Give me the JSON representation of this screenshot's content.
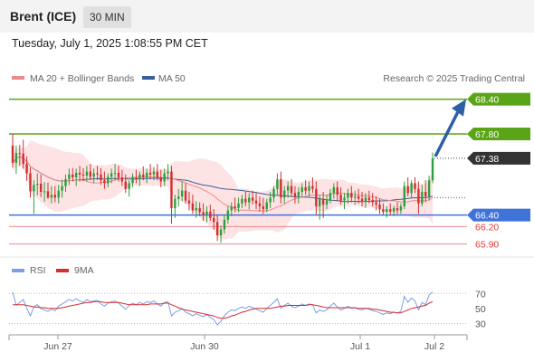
{
  "header": {
    "title": "Brent (ICE)",
    "interval": "30 MIN",
    "timestamp": "Tuesday, July 1, 2025 1:08:55 PM CET"
  },
  "legend": {
    "ma20": "MA 20 + Bollinger Bands",
    "ma50": "MA 50",
    "source": "Research © 2025 Trading Central"
  },
  "colors": {
    "up": "#2e9e3e",
    "down": "#d32f2f",
    "target": "#5aa517",
    "support": "#3f73d8",
    "minor": "#ef8a8a",
    "band": "#fde3e3",
    "ma20": "#ef8a8a",
    "ma50": "#3a5f9b",
    "rsi": "#7c9ee6",
    "rsi_ma": "#d32f2f",
    "arrow": "#2f5ea8"
  },
  "rsi_legend": {
    "rsi": "RSI",
    "ma": "9MA"
  },
  "chart_data": [
    {
      "type": "candlestick",
      "y_range": [
        65.8,
        68.55
      ],
      "x_labels": [
        "Jun 27",
        "Jun 30",
        "Jul 1",
        "Jul 2"
      ],
      "last_price": 67.38,
      "levels": [
        {
          "value": 68.4,
          "label": "68.40",
          "kind": "target"
        },
        {
          "value": 67.8,
          "label": "67.80",
          "kind": "target"
        },
        {
          "value": 66.4,
          "label": "66.40",
          "kind": "support"
        },
        {
          "value": 66.2,
          "label": "66.20",
          "kind": "minor"
        },
        {
          "value": 65.9,
          "label": "65.90",
          "kind": "minor"
        }
      ],
      "last_label": "67.38",
      "ohlc": [
        [
          67.6,
          67.8,
          67.22,
          67.3
        ],
        [
          67.3,
          67.6,
          67.11,
          67.47
        ],
        [
          67.47,
          67.61,
          67.25,
          67.46
        ],
        [
          67.46,
          67.7,
          67.2,
          67.28
        ],
        [
          67.28,
          67.41,
          66.99,
          67.12
        ],
        [
          67.12,
          67.22,
          66.7,
          66.81
        ],
        [
          66.81,
          67.0,
          66.42,
          66.92
        ],
        [
          66.92,
          67.12,
          66.74,
          66.94
        ],
        [
          66.94,
          67.1,
          66.71,
          66.8
        ],
        [
          66.8,
          66.97,
          66.63,
          66.81
        ],
        [
          66.81,
          66.96,
          66.68,
          66.7
        ],
        [
          66.7,
          66.9,
          66.6,
          66.75
        ],
        [
          66.75,
          66.9,
          66.62,
          66.7
        ],
        [
          66.7,
          66.92,
          66.6,
          66.82
        ],
        [
          66.82,
          67.01,
          66.7,
          66.9
        ],
        [
          66.9,
          67.1,
          66.8,
          67.02
        ],
        [
          67.02,
          67.2,
          66.92,
          67.1
        ],
        [
          67.1,
          67.21,
          66.98,
          67.05
        ],
        [
          67.05,
          67.2,
          66.9,
          67.13
        ],
        [
          67.13,
          67.25,
          66.98,
          67.1
        ],
        [
          67.1,
          67.21,
          66.99,
          67.08
        ],
        [
          67.08,
          67.25,
          66.98,
          67.15
        ],
        [
          67.15,
          67.28,
          67.0,
          67.06
        ],
        [
          67.06,
          67.2,
          66.95,
          67.12
        ],
        [
          67.12,
          67.25,
          67.0,
          67.1
        ],
        [
          67.1,
          67.21,
          66.92,
          67.0
        ],
        [
          67.0,
          67.15,
          66.85,
          66.95
        ],
        [
          66.95,
          67.12,
          66.88,
          67.06
        ],
        [
          67.06,
          67.2,
          66.95,
          67.12
        ],
        [
          67.12,
          67.28,
          67.0,
          67.13
        ],
        [
          67.13,
          67.25,
          66.98,
          67.05
        ],
        [
          67.05,
          67.18,
          66.9,
          66.98
        ],
        [
          66.98,
          67.1,
          66.78,
          66.85
        ],
        [
          66.85,
          67.0,
          66.72,
          66.95
        ],
        [
          66.95,
          67.12,
          66.88,
          67.05
        ],
        [
          67.05,
          67.18,
          66.95,
          67.02
        ],
        [
          67.02,
          67.15,
          66.9,
          67.1
        ],
        [
          67.1,
          67.24,
          67.0,
          67.05
        ],
        [
          67.05,
          67.2,
          66.95,
          67.13
        ],
        [
          67.13,
          67.28,
          67.02,
          67.1
        ],
        [
          67.1,
          67.23,
          67.0,
          67.15
        ],
        [
          67.15,
          67.28,
          67.0,
          67.05
        ],
        [
          67.05,
          67.18,
          66.88,
          66.98
        ],
        [
          66.98,
          67.2,
          66.9,
          67.12
        ],
        [
          67.12,
          67.28,
          67.0,
          67.15
        ],
        [
          67.15,
          67.25,
          66.25,
          66.52
        ],
        [
          66.52,
          66.75,
          66.35,
          66.68
        ],
        [
          66.68,
          66.85,
          66.55,
          66.72
        ],
        [
          66.72,
          66.98,
          66.64,
          66.82
        ],
        [
          66.82,
          66.95,
          66.6,
          66.65
        ],
        [
          66.65,
          66.8,
          66.48,
          66.6
        ],
        [
          66.6,
          66.75,
          66.42,
          66.48
        ],
        [
          66.48,
          66.64,
          66.35,
          66.52
        ],
        [
          66.52,
          66.62,
          66.38,
          66.45
        ],
        [
          66.45,
          66.6,
          66.3,
          66.4
        ],
        [
          66.4,
          66.55,
          66.28,
          66.46
        ],
        [
          66.46,
          66.58,
          66.3,
          66.35
        ],
        [
          66.35,
          66.5,
          66.15,
          66.28
        ],
        [
          66.28,
          66.4,
          65.95,
          66.05
        ],
        [
          66.05,
          66.22,
          65.92,
          66.15
        ],
        [
          66.15,
          66.4,
          66.08,
          66.32
        ],
        [
          66.32,
          66.55,
          66.25,
          66.48
        ],
        [
          66.48,
          66.62,
          66.38,
          66.55
        ],
        [
          66.55,
          66.7,
          66.45,
          66.52
        ],
        [
          66.52,
          66.7,
          66.45,
          66.6
        ],
        [
          66.6,
          66.75,
          66.52,
          66.68
        ],
        [
          66.68,
          66.8,
          66.55,
          66.62
        ],
        [
          66.62,
          66.78,
          66.5,
          66.7
        ],
        [
          66.7,
          66.82,
          66.58,
          66.65
        ],
        [
          66.65,
          66.78,
          66.5,
          66.6
        ],
        [
          66.6,
          66.72,
          66.46,
          66.55
        ],
        [
          66.55,
          66.7,
          66.42,
          66.5
        ],
        [
          66.5,
          66.68,
          66.45,
          66.62
        ],
        [
          66.62,
          66.8,
          66.52,
          66.7
        ],
        [
          66.7,
          66.9,
          66.62,
          66.85
        ],
        [
          66.85,
          67.12,
          66.75,
          67.02
        ],
        [
          67.02,
          67.15,
          66.6,
          66.7
        ],
        [
          66.7,
          66.9,
          66.6,
          66.82
        ],
        [
          66.82,
          66.98,
          66.7,
          66.9
        ],
        [
          66.9,
          67.02,
          66.72,
          66.78
        ],
        [
          66.78,
          66.9,
          66.6,
          66.72
        ],
        [
          66.72,
          66.88,
          66.6,
          66.8
        ],
        [
          66.8,
          66.95,
          66.7,
          66.88
        ],
        [
          66.88,
          67.0,
          66.75,
          66.82
        ],
        [
          66.82,
          66.98,
          66.72,
          66.9
        ],
        [
          66.9,
          67.05,
          66.78,
          66.85
        ],
        [
          66.85,
          66.98,
          66.4,
          66.55
        ],
        [
          66.55,
          66.75,
          66.32,
          66.68
        ],
        [
          66.68,
          66.8,
          66.35,
          66.58
        ],
        [
          66.58,
          66.75,
          66.5,
          66.65
        ],
        [
          66.65,
          66.85,
          66.6,
          66.78
        ],
        [
          66.78,
          66.95,
          66.68,
          66.88
        ],
        [
          66.88,
          66.98,
          66.65,
          66.75
        ],
        [
          66.75,
          66.88,
          66.58,
          66.65
        ],
        [
          66.65,
          66.78,
          66.5,
          66.7
        ],
        [
          66.7,
          66.85,
          66.6,
          66.78
        ],
        [
          66.78,
          66.9,
          66.62,
          66.7
        ],
        [
          66.7,
          66.82,
          66.58,
          66.72
        ],
        [
          66.72,
          66.85,
          66.6,
          66.68
        ],
        [
          66.68,
          66.8,
          66.55,
          66.64
        ],
        [
          66.64,
          66.78,
          66.52,
          66.7
        ],
        [
          66.7,
          66.82,
          66.6,
          66.66
        ],
        [
          66.66,
          66.78,
          66.55,
          66.62
        ],
        [
          66.62,
          66.72,
          66.48,
          66.58
        ],
        [
          66.58,
          66.68,
          66.42,
          66.5
        ],
        [
          66.5,
          66.6,
          66.4,
          66.45
        ],
        [
          66.45,
          66.55,
          66.36,
          66.5
        ],
        [
          66.5,
          66.6,
          66.4,
          66.46
        ],
        [
          66.46,
          66.56,
          66.38,
          66.52
        ],
        [
          66.52,
          66.62,
          66.42,
          66.48
        ],
        [
          66.48,
          66.6,
          66.42,
          66.55
        ],
        [
          66.55,
          66.98,
          66.5,
          66.9
        ],
        [
          66.9,
          67.05,
          66.72,
          66.78
        ],
        [
          66.78,
          67.0,
          66.7,
          66.95
        ],
        [
          66.95,
          67.05,
          66.78,
          66.85
        ],
        [
          66.85,
          66.98,
          66.42,
          66.6
        ],
        [
          66.6,
          66.92,
          66.55,
          66.8
        ],
        [
          66.8,
          67.0,
          66.62,
          66.72
        ],
        [
          66.72,
          67.08,
          66.65,
          67.0
        ],
        [
          67.0,
          67.48,
          66.95,
          67.38
        ]
      ]
    },
    {
      "type": "line",
      "name": "RSI",
      "y_ticks": [
        70,
        50,
        30
      ],
      "y_range": [
        22,
        80
      ],
      "series": [
        {
          "name": "RSI",
          "values": [
            72,
            54,
            58,
            62,
            50,
            40,
            52,
            55,
            50,
            48,
            46,
            49,
            47,
            53,
            56,
            59,
            62,
            60,
            63,
            60,
            58,
            62,
            59,
            60,
            61,
            56,
            53,
            57,
            59,
            60,
            57,
            53,
            49,
            54,
            57,
            55,
            58,
            56,
            59,
            58,
            60,
            56,
            53,
            58,
            59,
            40,
            45,
            47,
            50,
            45,
            43,
            40,
            43,
            41,
            39,
            42,
            38,
            35,
            28,
            33,
            40,
            45,
            48,
            47,
            50,
            52,
            50,
            53,
            51,
            49,
            47,
            45,
            50,
            54,
            58,
            63,
            50,
            54,
            57,
            53,
            51,
            53,
            56,
            54,
            56,
            55,
            44,
            48,
            46,
            48,
            53,
            57,
            52,
            48,
            50,
            53,
            50,
            51,
            49,
            48,
            50,
            49,
            47,
            46,
            44,
            42,
            44,
            43,
            45,
            44,
            46,
            66,
            58,
            64,
            60,
            48,
            58,
            55,
            68,
            72
          ]
        },
        {
          "name": "9MA",
          "values": [
            55,
            55,
            55,
            55,
            54,
            53,
            52,
            52,
            51,
            51,
            50,
            50,
            50,
            50,
            51,
            52,
            53,
            54,
            55,
            56,
            57,
            58,
            58,
            59,
            59,
            59,
            58,
            58,
            58,
            58,
            58,
            57,
            56,
            55,
            55,
            55,
            55,
            55,
            55,
            56,
            56,
            56,
            56,
            57,
            57,
            55,
            53,
            51,
            49,
            48,
            47,
            46,
            45,
            44,
            43,
            42,
            41,
            40,
            38,
            37,
            37,
            38,
            40,
            41,
            43,
            45,
            46,
            48,
            49,
            50,
            50,
            50,
            50,
            50,
            51,
            52,
            53,
            53,
            54,
            54,
            54,
            54,
            54,
            54,
            55,
            55,
            54,
            53,
            52,
            51,
            51,
            51,
            51,
            51,
            51,
            51,
            51,
            51,
            50,
            50,
            50,
            50,
            49,
            49,
            48,
            47,
            46,
            45,
            45,
            44,
            44,
            46,
            48,
            50,
            51,
            52,
            53,
            54,
            57,
            59
          ]
        }
      ]
    }
  ]
}
